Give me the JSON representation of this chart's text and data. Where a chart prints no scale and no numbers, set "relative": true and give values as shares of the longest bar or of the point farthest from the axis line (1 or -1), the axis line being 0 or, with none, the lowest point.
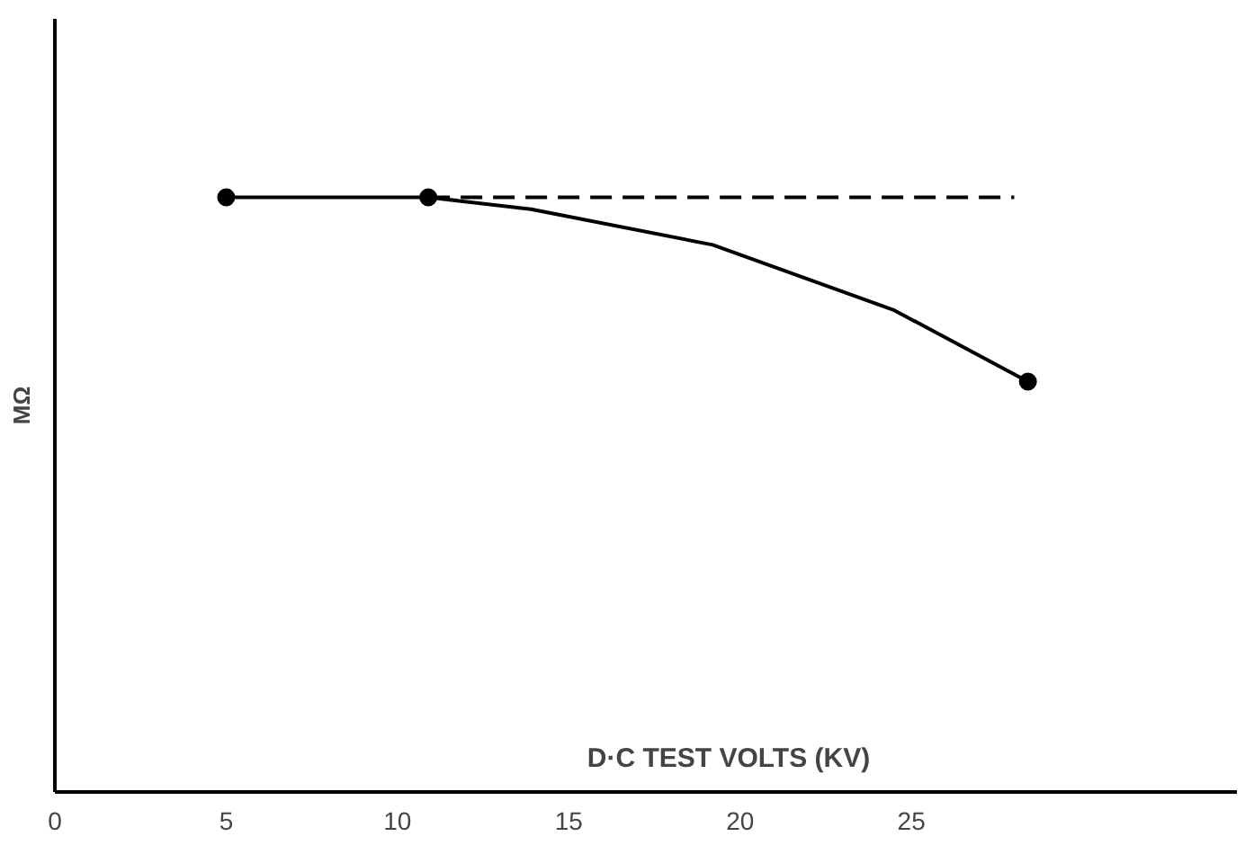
{
  "chart_data": {
    "type": "line",
    "xlabel": "D·C TEST VOLTS (KV)",
    "ylabel": "MΩ",
    "relative": true,
    "xlim": [
      0,
      34.5
    ],
    "xticks": [
      0,
      5,
      10,
      15,
      20,
      25
    ],
    "grid": false,
    "series": [
      {
        "color": "#000000",
        "line_style": "solid",
        "marker": "none",
        "x": [
          5,
          10.9,
          13.9,
          19.2,
          24.5,
          28.4
        ],
        "values": [
          1,
          1,
          0.98,
          0.92,
          0.81,
          0.69
        ]
      },
      {
        "color": "#000000",
        "line_style": "dashed",
        "marker": "none",
        "x": [
          10.9,
          28
        ],
        "values": [
          1,
          1
        ]
      },
      {
        "type": "scatter",
        "color": "#000000",
        "marker": "circle",
        "x": [
          5,
          10.9,
          28.4
        ],
        "values": [
          1,
          1,
          0.69
        ]
      }
    ]
  }
}
